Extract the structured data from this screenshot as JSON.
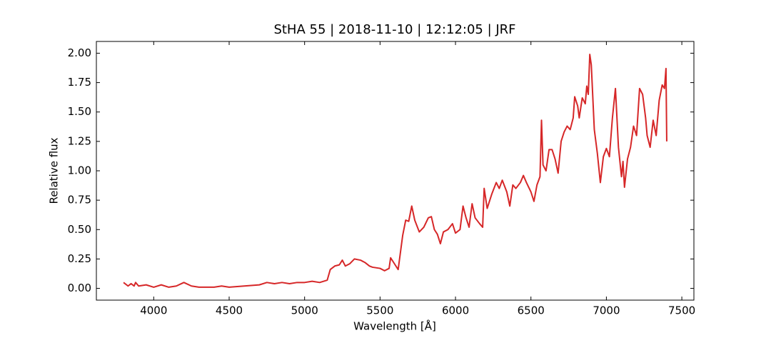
{
  "chart_data": {
    "type": "line",
    "title": "StHA 55 | 2018-11-10 | 12:12:05 | JRF",
    "xlabel": "Wavelength [Å]",
    "ylabel": "Relative flux",
    "x": [
      3800,
      3830,
      3850,
      3870,
      3880,
      3900,
      3950,
      4000,
      4050,
      4100,
      4150,
      4200,
      4250,
      4300,
      4400,
      4450,
      4500,
      4600,
      4700,
      4750,
      4800,
      4850,
      4900,
      4950,
      5000,
      5050,
      5100,
      5150,
      5170,
      5200,
      5230,
      5250,
      5270,
      5300,
      5330,
      5370,
      5400,
      5430,
      5450,
      5500,
      5530,
      5560,
      5570,
      5600,
      5620,
      5650,
      5670,
      5690,
      5710,
      5730,
      5760,
      5790,
      5820,
      5840,
      5860,
      5880,
      5900,
      5920,
      5950,
      5980,
      6000,
      6030,
      6050,
      6070,
      6090,
      6110,
      6130,
      6160,
      6180,
      6190,
      6210,
      6240,
      6270,
      6290,
      6310,
      6340,
      6360,
      6380,
      6400,
      6430,
      6450,
      6470,
      6500,
      6520,
      6540,
      6560,
      6570,
      6580,
      6600,
      6620,
      6640,
      6660,
      6680,
      6700,
      6720,
      6740,
      6760,
      6780,
      6790,
      6810,
      6820,
      6840,
      6860,
      6870,
      6880,
      6890,
      6900,
      6920,
      6940,
      6960,
      6980,
      7000,
      7020,
      7040,
      7060,
      7080,
      7100,
      7110,
      7120,
      7140,
      7160,
      7180,
      7200,
      7220,
      7240,
      7260,
      7270,
      7290,
      7310,
      7330,
      7350,
      7370,
      7385,
      7395,
      7400
    ],
    "series": [
      {
        "color": "#d62728",
        "values": [
          0.05,
          0.02,
          0.04,
          0.02,
          0.05,
          0.02,
          0.03,
          0.01,
          0.03,
          0.01,
          0.02,
          0.05,
          0.02,
          0.01,
          0.01,
          0.02,
          0.01,
          0.02,
          0.03,
          0.05,
          0.04,
          0.05,
          0.04,
          0.05,
          0.05,
          0.06,
          0.05,
          0.07,
          0.16,
          0.19,
          0.2,
          0.24,
          0.19,
          0.21,
          0.25,
          0.24,
          0.22,
          0.19,
          0.18,
          0.17,
          0.15,
          0.17,
          0.26,
          0.2,
          0.16,
          0.45,
          0.58,
          0.57,
          0.7,
          0.58,
          0.48,
          0.52,
          0.6,
          0.61,
          0.5,
          0.46,
          0.38,
          0.48,
          0.5,
          0.55,
          0.47,
          0.5,
          0.7,
          0.6,
          0.52,
          0.72,
          0.6,
          0.55,
          0.52,
          0.85,
          0.68,
          0.8,
          0.9,
          0.85,
          0.92,
          0.82,
          0.7,
          0.88,
          0.85,
          0.9,
          0.96,
          0.9,
          0.82,
          0.74,
          0.88,
          0.95,
          1.43,
          1.05,
          1.0,
          1.18,
          1.18,
          1.1,
          0.98,
          1.25,
          1.33,
          1.38,
          1.35,
          1.45,
          1.63,
          1.55,
          1.45,
          1.62,
          1.57,
          1.72,
          1.65,
          1.99,
          1.9,
          1.35,
          1.15,
          0.9,
          1.12,
          1.19,
          1.12,
          1.45,
          1.7,
          1.2,
          0.95,
          1.08,
          0.86,
          1.1,
          1.2,
          1.38,
          1.3,
          1.7,
          1.65,
          1.45,
          1.3,
          1.2,
          1.43,
          1.3,
          1.6,
          1.73,
          1.7,
          1.87,
          1.25
        ]
      }
    ],
    "xlim": [
      3620,
      7580
    ],
    "ylim": [
      -0.1,
      2.1
    ],
    "xticks": [
      4000,
      4500,
      5000,
      5500,
      6000,
      6500,
      7000,
      7500
    ],
    "yticks": [
      {
        "value": 0,
        "label": "0.00"
      },
      {
        "value": 0.25,
        "label": "0.25"
      },
      {
        "value": 0.5,
        "label": "0.50"
      },
      {
        "value": 0.75,
        "label": "0.75"
      },
      {
        "value": 1,
        "label": "1.00"
      },
      {
        "value": 1.25,
        "label": "1.25"
      },
      {
        "value": 1.5,
        "label": "1.50"
      },
      {
        "value": 1.75,
        "label": "1.75"
      },
      {
        "value": 2,
        "label": "2.00"
      }
    ],
    "grid": false
  }
}
